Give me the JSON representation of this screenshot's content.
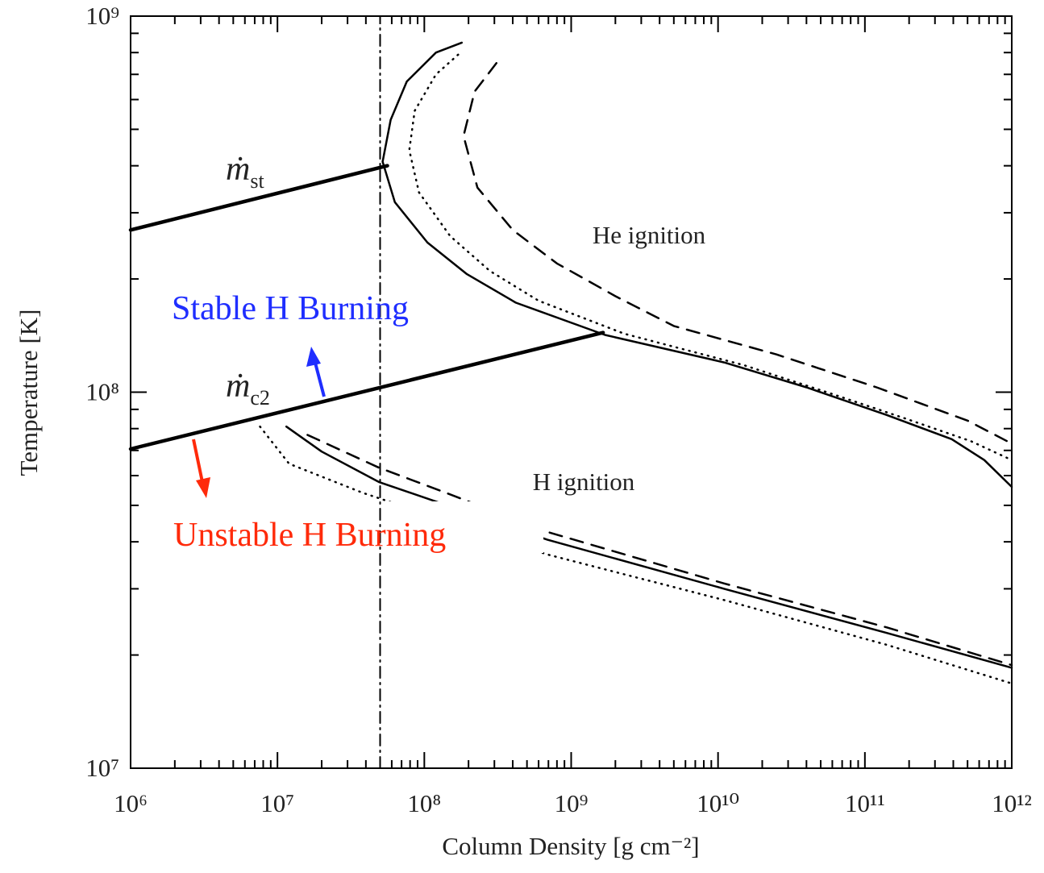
{
  "chart_data": {
    "type": "line",
    "x_label": "Column Density [g cm⁻²]",
    "y_label": "Temperature [K]",
    "log_x": true,
    "log_y": true,
    "xlim": [
      1000000.0,
      1000000000000.0
    ],
    "ylim": [
      10000000.0,
      1000000000.0
    ],
    "xticks": [
      {
        "value": 1000000.0,
        "label": "10⁶"
      },
      {
        "value": 10000000.0,
        "label": "10⁷"
      },
      {
        "value": 100000000.0,
        "label": "10⁸"
      },
      {
        "value": 1000000000.0,
        "label": "10⁹"
      },
      {
        "value": 10000000000.0,
        "label": "10¹⁰"
      },
      {
        "value": 100000000000.0,
        "label": "10¹¹"
      },
      {
        "value": 1000000000000.0,
        "label": "10¹²"
      }
    ],
    "yticks": [
      {
        "value": 10000000.0,
        "label": "10⁷"
      },
      {
        "value": 100000000.0,
        "label": "10⁸"
      },
      {
        "value": 1000000000.0,
        "label": "10⁹"
      }
    ],
    "minor_ticks": true,
    "series": [
      {
        "color": "#000000",
        "style": "solid",
        "width": 2.5,
        "x": [
          180000000.0,
          120000000.0,
          76000000.0,
          59000000.0,
          52000000.0,
          63000000.0,
          105000000.0,
          195000000.0,
          420000000.0,
          1700000000.0,
          11000000000.0,
          40000000000.0,
          140000000000.0,
          390000000000.0,
          650000000000.0,
          1000000000000.0
        ],
        "values": [
          850000000.0,
          800000000.0,
          670000000.0,
          530000000.0,
          410000000.0,
          320000000.0,
          250000000.0,
          206000000.0,
          173000000.0,
          142000000.0,
          120000000.0,
          103000000.0,
          87000000.0,
          75000000.0,
          66000000.0,
          56000000.0
        ]
      },
      {
        "color": "#000000",
        "style": "dotted",
        "width": 2.5,
        "x": [
          170000000.0,
          120000000.0,
          86000000.0,
          79000000.0,
          92000000.0,
          150000000.0,
          280000000.0,
          600000000.0,
          2300000000.0,
          15000000000.0,
          55000000000.0,
          190000000000.0,
          530000000000.0,
          1000000000000.0
        ],
        "values": [
          790000000.0,
          700000000.0,
          560000000.0,
          440000000.0,
          340000000.0,
          260000000.0,
          210000000.0,
          175000000.0,
          143000000.0,
          118000000.0,
          100000000.0,
          85000000.0,
          74000000.0,
          66000000.0
        ]
      },
      {
        "color": "#000000",
        "style": "dashed",
        "width": 2.5,
        "x": [
          310000000.0,
          220000000.0,
          185000000.0,
          230000000.0,
          400000000.0,
          800000000.0,
          2000000000.0,
          5000000000.0,
          25000000000.0,
          120000000000.0,
          500000000000.0,
          1000000000000.0
        ],
        "values": [
          750000000.0,
          630000000.0,
          480000000.0,
          350000000.0,
          270000000.0,
          220000000.0,
          180000000.0,
          150000000.0,
          126000000.0,
          103000000.0,
          84000000.0,
          73000000.0
        ]
      },
      {
        "color": "#000000",
        "style": "solid",
        "width": 2.5,
        "x": [
          11500000.0,
          20000000.0,
          49000000.0,
          690000000.0,
          11000000000.0,
          140000000000.0,
          1000000000000.0
        ],
        "values": [
          81000000.0,
          69500000.0,
          57700000.0,
          40500000.0,
          30000000.0,
          22900000.0,
          18500000.0
        ]
      },
      {
        "color": "#000000",
        "style": "dotted",
        "width": 2.5,
        "x": [
          7600000.0,
          12000000.0,
          38000000.0,
          690000000.0,
          11000000000.0,
          140000000000.0,
          1000000000000.0
        ],
        "values": [
          81000000.0,
          64500000.0,
          54000000.0,
          37000000.0,
          28000000.0,
          21300000.0,
          16800000.0
        ]
      },
      {
        "color": "#000000",
        "style": "dashed",
        "width": 2.5,
        "x": [
          16000000.0,
          49000000.0,
          135000000.0,
          690000000.0,
          11000000000.0,
          140000000000.0,
          1000000000000.0
        ],
        "values": [
          77000000.0,
          63000000.0,
          54300000.0,
          42500000.0,
          31000000.0,
          23700000.0,
          18800000.0
        ]
      },
      {
        "color": "#000000",
        "style": "dashdot",
        "width": 2,
        "x": [
          50000000.0,
          50000000.0
        ],
        "values": [
          10000000.0,
          1000000000.0
        ]
      },
      {
        "color": "#000000",
        "style": "solid",
        "width": 4.5,
        "x": [
          1000000.0,
          56000000.0
        ],
        "values": [
          270000000.0,
          400000000.0
        ]
      },
      {
        "color": "#000000",
        "style": "solid",
        "width": 4.5,
        "x": [
          1000000.0,
          1650000000.0
        ],
        "values": [
          70600000.0,
          144000000.0
        ]
      }
    ],
    "annotations": {
      "he": "He ignition",
      "h": "H ignition",
      "stable": "Stable H Burning",
      "unstable": "Unstable H Burning",
      "mst": {
        "symbol": "ṁ",
        "sub": "st"
      },
      "mc2": {
        "symbol": "ṁ",
        "sub": "c2"
      }
    }
  }
}
